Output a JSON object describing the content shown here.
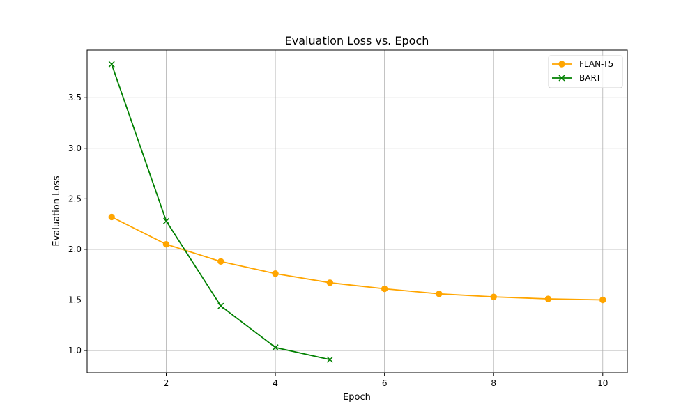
{
  "chart_data": {
    "type": "line",
    "title": "Evaluation Loss vs. Epoch",
    "xlabel": "Epoch",
    "ylabel": "Evaluation Loss",
    "xlim": [
      0.55,
      10.45
    ],
    "ylim": [
      0.78,
      3.97
    ],
    "xticks": [
      2,
      4,
      6,
      8,
      10
    ],
    "xtick_labels": [
      "2",
      "4",
      "6",
      "8",
      "10"
    ],
    "yticks": [
      1.0,
      1.5,
      2.0,
      2.5,
      3.0,
      3.5
    ],
    "ytick_labels": [
      "1.0",
      "1.5",
      "2.0",
      "2.5",
      "3.0",
      "3.5"
    ],
    "grid": true,
    "legend_position": "top-right",
    "series": [
      {
        "name": "FLAN-T5",
        "color": "#ffa500",
        "marker": "circle",
        "x": [
          1,
          2,
          3,
          4,
          5,
          6,
          7,
          8,
          9,
          10
        ],
        "values": [
          2.32,
          2.05,
          1.88,
          1.76,
          1.67,
          1.61,
          1.56,
          1.53,
          1.51,
          1.5
        ]
      },
      {
        "name": "BART",
        "color": "#008000",
        "marker": "x",
        "x": [
          1,
          2,
          3,
          4,
          5
        ],
        "values": [
          3.83,
          2.28,
          1.44,
          1.03,
          0.91
        ]
      }
    ]
  }
}
